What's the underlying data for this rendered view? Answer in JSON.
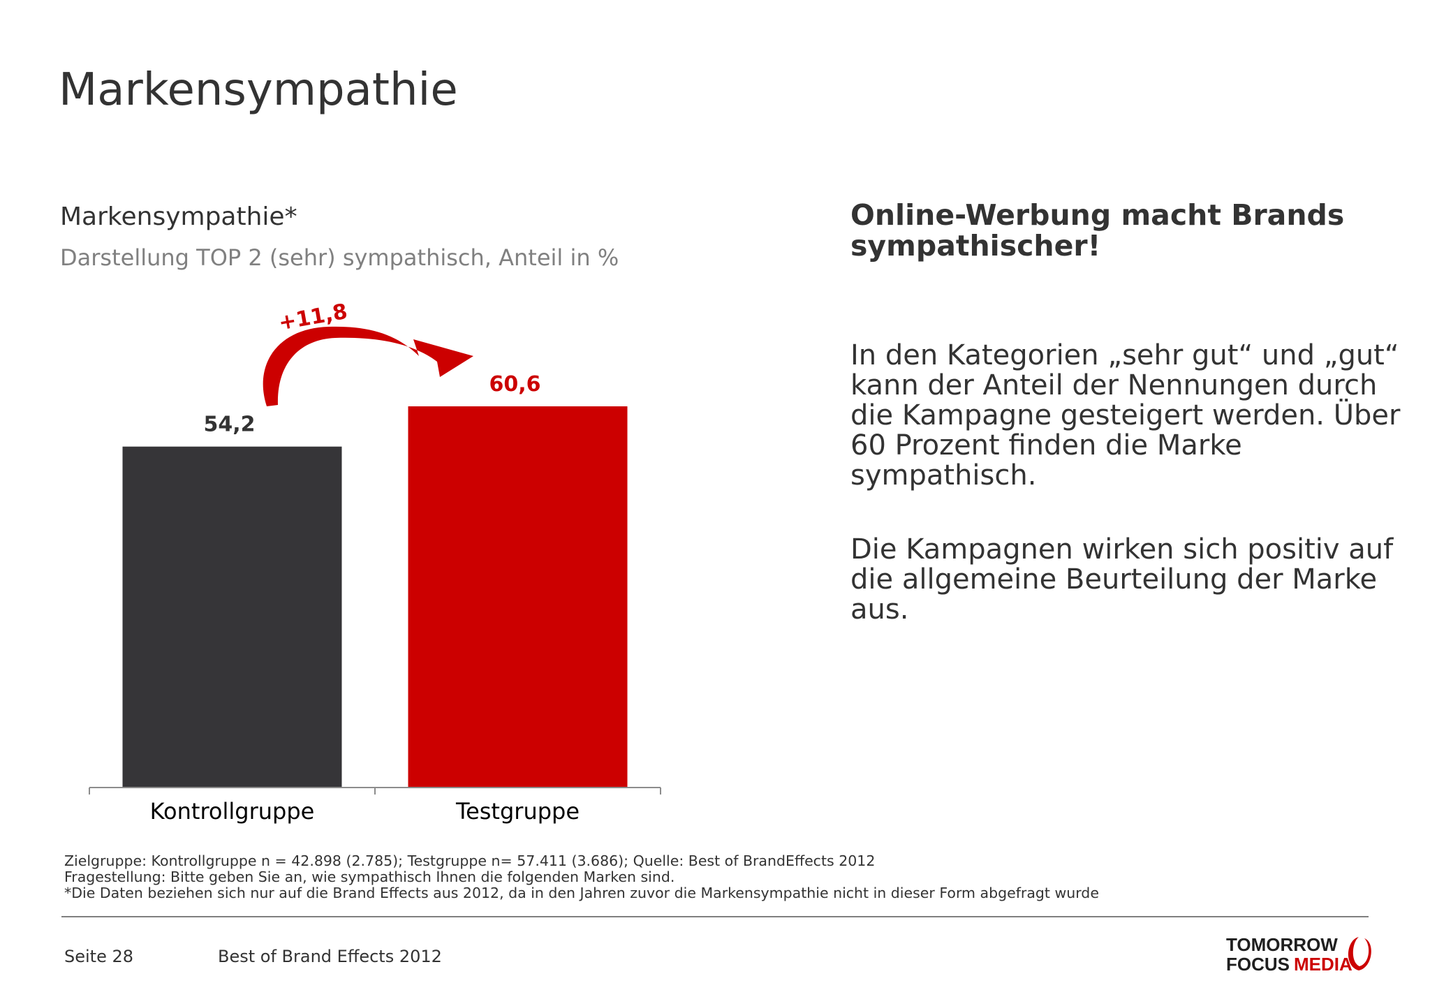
{
  "slide": {
    "title": "Markensympathie",
    "page_number": "Seite 28",
    "document_name": "Best of Brand Effects 2012"
  },
  "colors": {
    "control_bar": "#363538",
    "test_bar": "#cc0000",
    "accent": "#cc0000",
    "text": "#333333",
    "subtitle": "#808080"
  },
  "chart_data": {
    "type": "bar",
    "title": "Markensympathie*",
    "subtitle": "Darstellung TOP 2 (sehr) sympathisch, Anteil in %",
    "categories": [
      "Kontrollgruppe",
      "Testgruppe"
    ],
    "values": [
      54.2,
      60.6
    ],
    "value_labels": [
      "54,2",
      "60,6"
    ],
    "ylim": [
      0,
      60.6
    ],
    "grid": false,
    "annotation": {
      "text": "+11,8",
      "from": "Kontrollgruppe",
      "to": "Testgruppe"
    }
  },
  "text_panel": {
    "headline": "Online-Werbung macht Brands sympathischer!",
    "paragraphs": [
      "In den Kategorien „sehr gut“ und „gut“ kann der Anteil der Nennungen durch die Kampagne gesteigert werden. Über 60 Prozent finden die Marke sympathisch.",
      "Die Kampagnen wirken sich positiv auf die allgemeine Beurteilung der Marke aus."
    ]
  },
  "footnotes": [
    "Zielgruppe: Kontrollgruppe n = 42.898 (2.785); Testgruppe n= 57.411 (3.686); Quelle: Best of BrandEffects 2012",
    "Fragestellung: Bitte geben Sie an, wie sympathisch Ihnen die folgenden Marken sind.",
    "*Die Daten beziehen sich nur auf die Brand Effects  aus 2012, da in den Jahren zuvor die Markensympathie nicht in dieser Form abgefragt wurde"
  ],
  "logo": {
    "line1": "TOMORROW",
    "line2a": "FOCUS",
    "line2b": "MEDIA"
  }
}
